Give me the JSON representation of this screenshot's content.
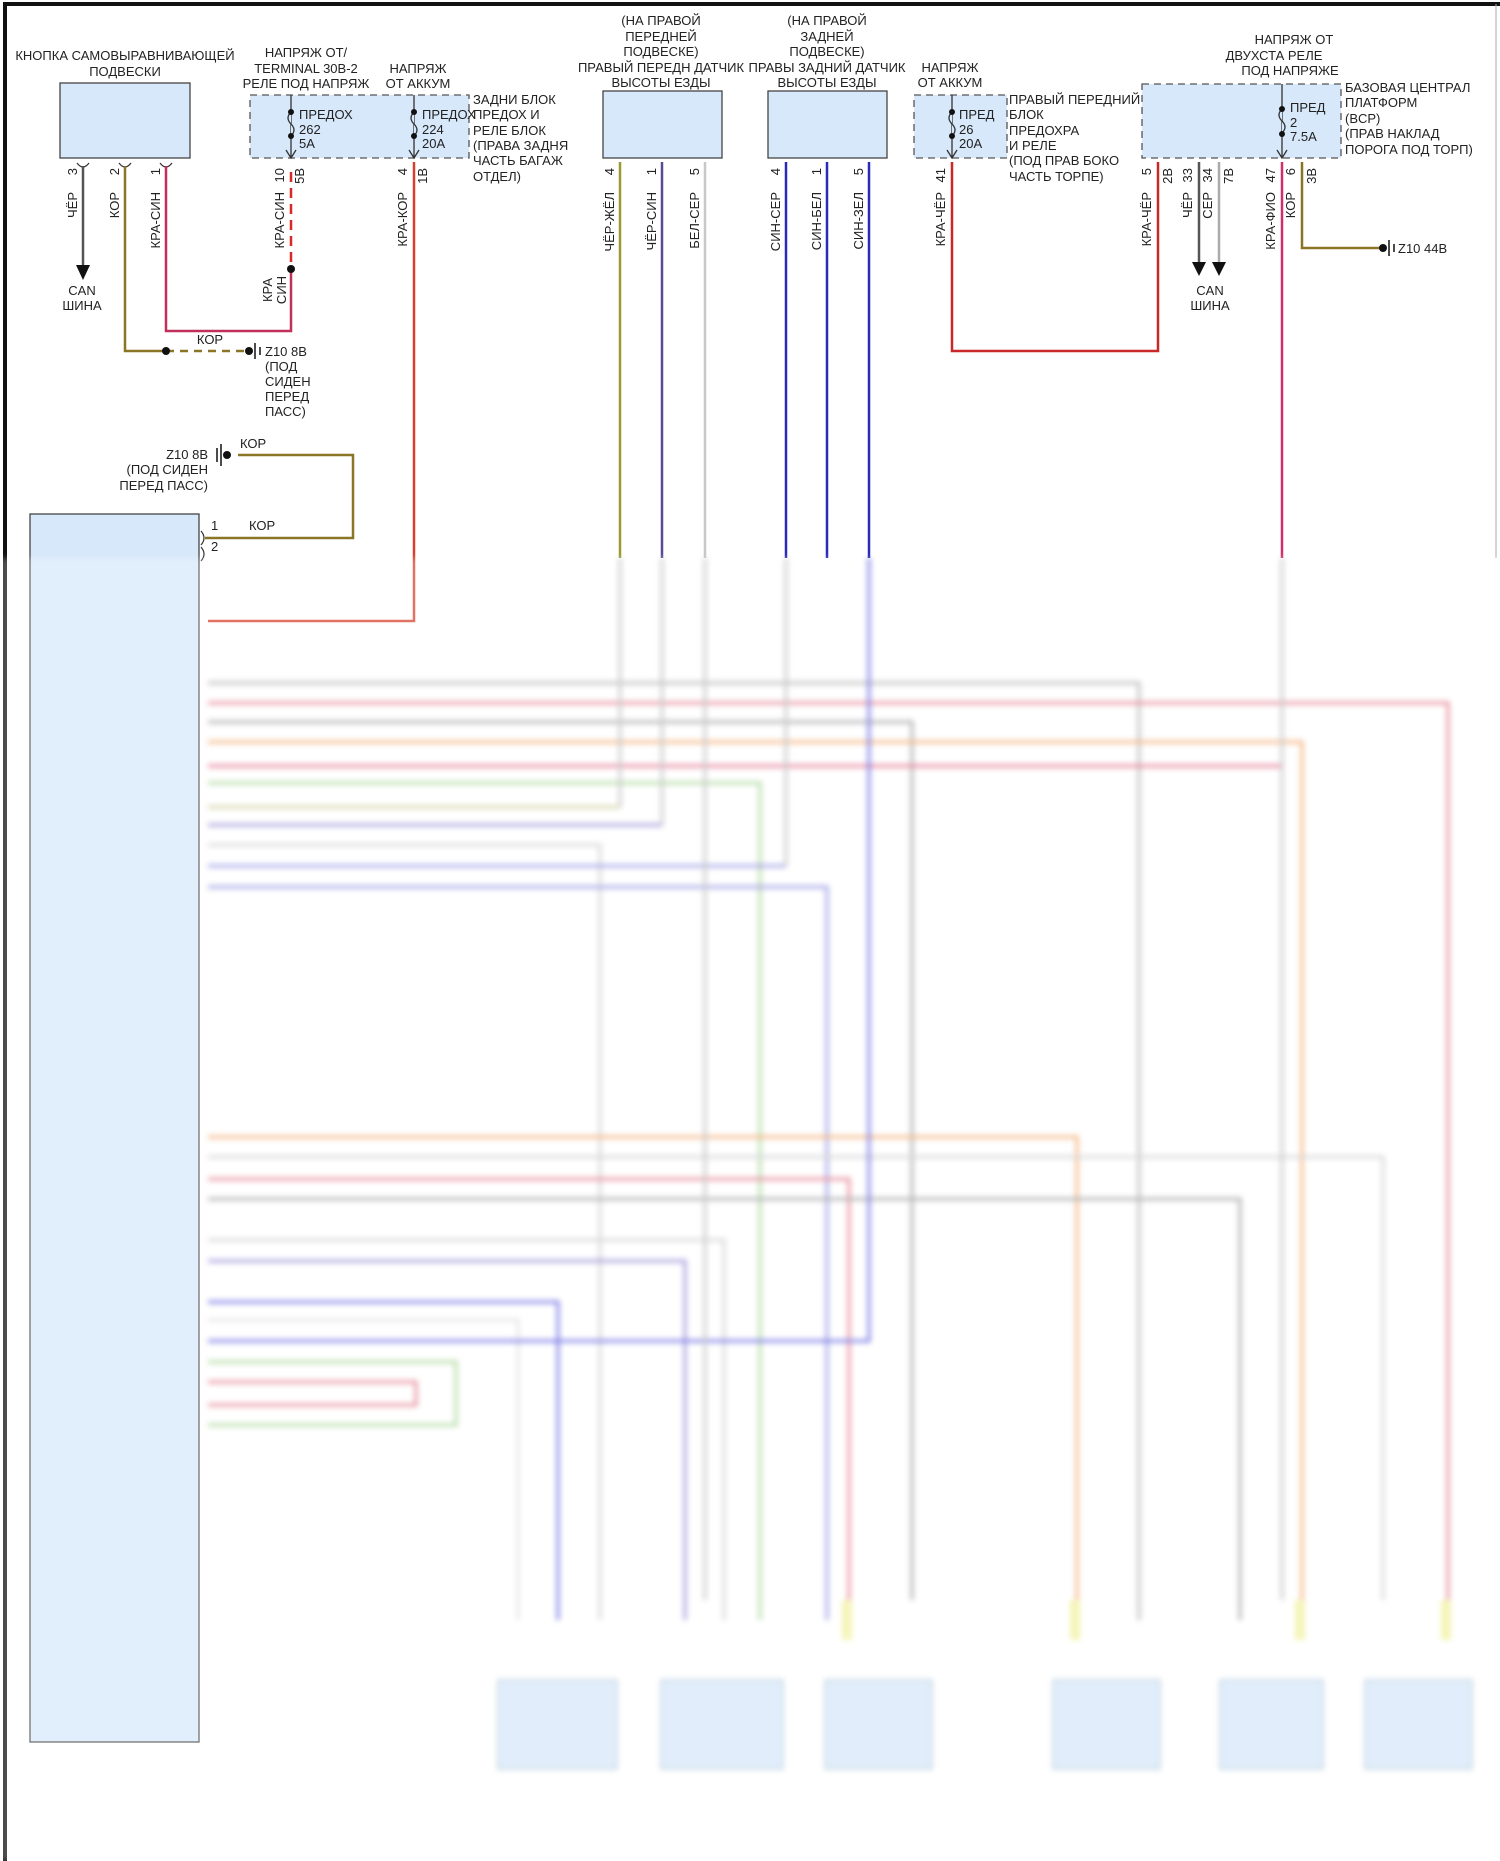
{
  "colors": {
    "black_wire": "#555555",
    "brown_wire": "#8a7426",
    "red_blue_wire": "#c0305a",
    "red_brown_wire": "#d8402e",
    "black_yellow_wire": "#9c9a2e",
    "black_blue_wire": "#5a4a96",
    "white_gray_wire": "#c8c8c8",
    "blue_wire": "#2a2ab8",
    "red_black_wire": "#c82828",
    "red_violet_wire": "#d0306a",
    "gray_wire": "#aaaaaa",
    "component_fill": "#d7e8fa"
  },
  "switch": {
    "title": [
      "КНОПКА САМОВЫРАВНИВАЮЩЕЙ",
      "ПОДВЕСКИ"
    ],
    "pins": [
      {
        "num": "3",
        "wire": "ЧЁР"
      },
      {
        "num": "2",
        "wire": "КОР"
      },
      {
        "num": "1",
        "wire": "КРА-СИН"
      }
    ],
    "can": [
      "CAN",
      "ШИНА"
    ]
  },
  "ground_top": {
    "wire": "КОР",
    "id": "Z10 8B",
    "location": [
      "(ПОД",
      "СИДЕН",
      "ПЕРЕД",
      "ПАСС)"
    ]
  },
  "splice_label": [
    "КРА",
    "СИН"
  ],
  "rear_fuse_block": {
    "supply1": [
      "НАПРЯЖ ОТ/",
      "TERMINAL 30B-2",
      "РЕЛЕ ПОД НАПРЯЖ"
    ],
    "supply2": [
      "НАПРЯЖ",
      "ОТ АККУМ"
    ],
    "fuse1": [
      "ПРЕДОХ",
      "262",
      "5A"
    ],
    "fuse2": [
      "ПРЕДОХ",
      "224",
      "20A"
    ],
    "name": [
      "ЗАДНИ БЛОК",
      "ПРЕДОХ И",
      "РЕЛЕ БЛОК",
      "(ПРАВА ЗАДНЯ",
      "ЧАСТЬ БАГАЖ",
      "ОТДЕЛ)"
    ],
    "pins": [
      {
        "num": "10",
        "conn": "5B",
        "wire": "КРА-СИН"
      },
      {
        "num": "4",
        "conn": "1B",
        "wire": "КРА-КОР"
      }
    ]
  },
  "front_sensor": {
    "title": [
      "(НА ПРАВОЙ",
      "ПЕРЕДНЕЙ",
      "ПОДВЕСКЕ)",
      "ПРАВЫЙ ПЕРЕДН ДАТЧИК",
      "ВЫСОТЫ ЕЗДЫ"
    ],
    "pins": [
      {
        "num": "4",
        "wire": "ЧЁР-ЖЁЛ"
      },
      {
        "num": "1",
        "wire": "ЧЁР-СИН"
      },
      {
        "num": "5",
        "wire": "БЕЛ-СЕР"
      }
    ]
  },
  "rear_sensor": {
    "title": [
      "(НА ПРАВОЙ",
      "ЗАДНЕЙ",
      "ПОДВЕСКЕ)",
      "ПРАВЫ ЗАДНИЙ ДАТЧИК",
      "ВЫСОТЫ ЕЗДЫ"
    ],
    "pins": [
      {
        "num": "4",
        "wire": "СИН-СЕР"
      },
      {
        "num": "1",
        "wire": "СИН-БЕЛ"
      },
      {
        "num": "5",
        "wire": "СИН-ЗЕЛ"
      }
    ]
  },
  "front_fuse_block": {
    "supply": [
      "НАПРЯЖ",
      "ОТ АККУМ"
    ],
    "fuse": [
      "ПРЕД",
      "26",
      "20A"
    ],
    "name": [
      "ПРАВЫЙ ПЕРЕДНИЙ",
      "БЛОК",
      "ПРЕДОХРА",
      "И РЕЛЕ",
      "(ПОД ПРАВ БОКО",
      "ЧАСТЬ ТОРПЕ)"
    ],
    "pin": {
      "num": "41",
      "wire": "КРА-ЧЁР"
    }
  },
  "bcp": {
    "supply": [
      "НАПРЯЖ ОТ",
      "ДВУХСТА РЕЛЕ",
      "ПОД НАПРЯЖЕ"
    ],
    "fuse": [
      "ПРЕД",
      "2",
      "7.5A"
    ],
    "name": [
      "БАЗОВАЯ ЦЕНТРАЛ",
      "ПЛАТФОРМ",
      "(BCP)",
      "(ПРАВ НАКЛАД",
      "ПОРОГА ПОД ТОРП)"
    ],
    "pins": [
      {
        "num": "5",
        "conn": "2B",
        "wire": "КРА-ЧЁР"
      },
      {
        "num": "33",
        "wire": "ЧЁР"
      },
      {
        "num": "34",
        "conn": "7B",
        "wire": "СЕР"
      },
      {
        "num": "47",
        "wire": "КРА-ФИО"
      },
      {
        "num": "6",
        "conn": "3B",
        "wire": "КОР"
      }
    ],
    "can": [
      "CAN",
      "ШИНА"
    ],
    "ground": "Z10 44B"
  },
  "module": {
    "ground": {
      "id": "Z10 8B",
      "location": [
        "(ПОД СИДЕН",
        "ПЕРЕД ПАСС)"
      ],
      "wire": "КОР"
    },
    "pins": [
      {
        "num": "1",
        "wire": "КОР"
      },
      {
        "num": "2"
      }
    ]
  }
}
